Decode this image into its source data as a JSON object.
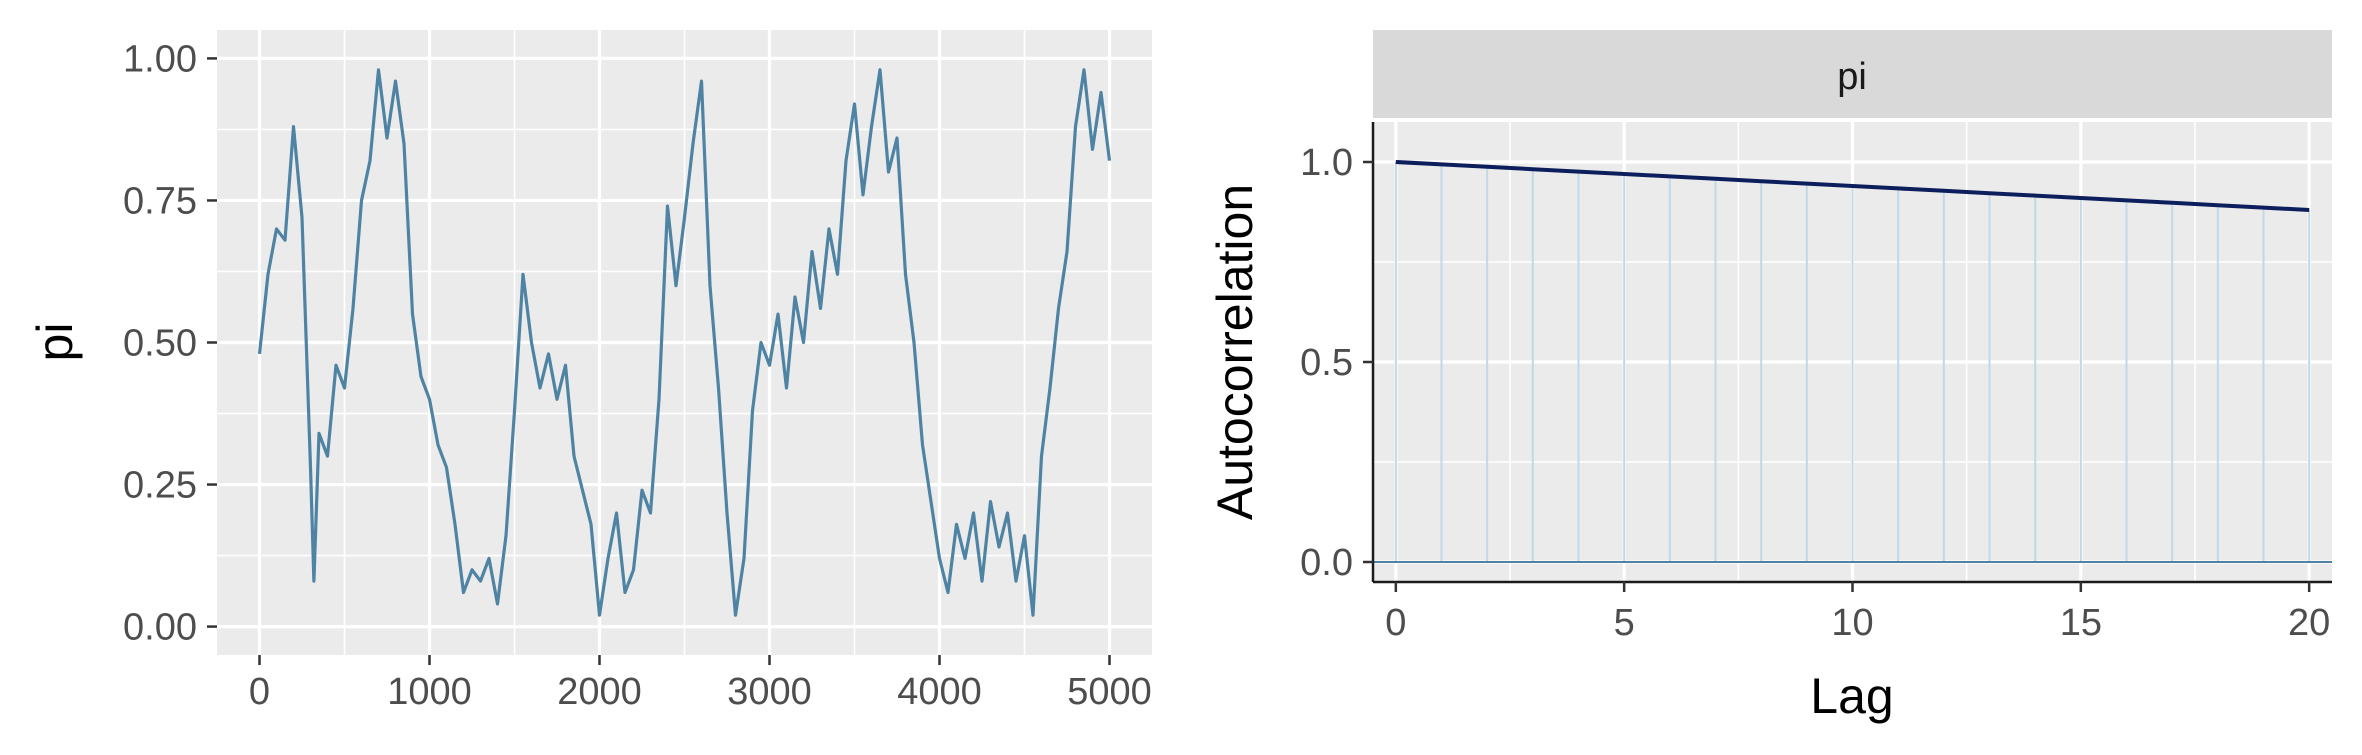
{
  "chart_data": [
    {
      "type": "line",
      "title": "",
      "xlabel": "",
      "ylabel": "pi",
      "xlim": [
        -250,
        5250
      ],
      "ylim": [
        -0.05,
        1.05
      ],
      "x_ticks": [
        0,
        1000,
        2000,
        3000,
        4000,
        5000
      ],
      "x_tick_labels": [
        "0",
        "1000",
        "2000",
        "3000",
        "4000",
        "5000"
      ],
      "y_ticks": [
        0,
        0.25,
        0.5,
        0.75,
        1.0
      ],
      "y_tick_labels": [
        "0.00",
        "0.25",
        "0.50",
        "0.75",
        "1.00"
      ],
      "grid": true,
      "color": "#4e83a4",
      "series": [
        {
          "x": [
            0,
            50,
            100,
            150,
            200,
            250,
            300,
            320,
            350,
            400,
            450,
            500,
            550,
            600,
            650,
            700,
            750,
            800,
            850,
            900,
            950,
            1000,
            1050,
            1100,
            1150,
            1200,
            1250,
            1300,
            1350,
            1400,
            1450,
            1500,
            1550,
            1600,
            1650,
            1700,
            1750,
            1800,
            1850,
            1900,
            1950,
            2000,
            2050,
            2100,
            2150,
            2200,
            2250,
            2300,
            2350,
            2400,
            2450,
            2500,
            2550,
            2600,
            2650,
            2700,
            2750,
            2800,
            2850,
            2900,
            2950,
            3000,
            3050,
            3100,
            3150,
            3200,
            3250,
            3300,
            3350,
            3400,
            3450,
            3500,
            3550,
            3600,
            3650,
            3700,
            3750,
            3800,
            3850,
            3900,
            3950,
            4000,
            4050,
            4100,
            4150,
            4200,
            4250,
            4300,
            4350,
            4400,
            4450,
            4500,
            4550,
            4600,
            4650,
            4700,
            4750,
            4800,
            4850,
            4900,
            4950,
            5000
          ],
          "y": [
            0.48,
            0.62,
            0.7,
            0.68,
            0.88,
            0.72,
            0.28,
            0.08,
            0.34,
            0.3,
            0.46,
            0.42,
            0.56,
            0.75,
            0.82,
            0.98,
            0.86,
            0.96,
            0.85,
            0.55,
            0.44,
            0.4,
            0.32,
            0.28,
            0.18,
            0.06,
            0.1,
            0.08,
            0.12,
            0.04,
            0.16,
            0.38,
            0.62,
            0.5,
            0.42,
            0.48,
            0.4,
            0.46,
            0.3,
            0.24,
            0.18,
            0.02,
            0.12,
            0.2,
            0.06,
            0.1,
            0.24,
            0.2,
            0.4,
            0.74,
            0.6,
            0.72,
            0.85,
            0.96,
            0.6,
            0.42,
            0.2,
            0.02,
            0.12,
            0.38,
            0.5,
            0.46,
            0.55,
            0.42,
            0.58,
            0.5,
            0.66,
            0.56,
            0.7,
            0.62,
            0.82,
            0.92,
            0.76,
            0.88,
            0.98,
            0.8,
            0.86,
            0.62,
            0.5,
            0.32,
            0.22,
            0.12,
            0.06,
            0.18,
            0.12,
            0.2,
            0.08,
            0.22,
            0.14,
            0.2,
            0.08,
            0.16,
            0.02,
            0.3,
            0.42,
            0.56,
            0.66,
            0.88,
            0.98,
            0.84,
            0.94,
            0.82
          ]
        }
      ]
    },
    {
      "type": "bar",
      "title": "",
      "facet_label": "pi",
      "xlabel": "Lag",
      "ylabel": "Autocorrelation",
      "xlim": [
        -0.5,
        20.5
      ],
      "ylim": [
        -0.05,
        1.1
      ],
      "x_ticks": [
        0,
        5,
        10,
        15,
        20
      ],
      "x_tick_labels": [
        "0",
        "5",
        "10",
        "15",
        "20"
      ],
      "y_ticks": [
        0,
        0.5,
        1.0
      ],
      "y_tick_labels": [
        "0.0",
        "0.5",
        "1.0"
      ],
      "grid": true,
      "bar_color": "#c2d8e6",
      "line_color": "#0c1f5c",
      "zero_line_color": "#4e83a4",
      "lags": [
        0,
        1,
        2,
        3,
        4,
        5,
        6,
        7,
        8,
        9,
        10,
        11,
        12,
        13,
        14,
        15,
        16,
        17,
        18,
        19,
        20
      ],
      "values": [
        1.0,
        0.994,
        0.988,
        0.982,
        0.976,
        0.97,
        0.964,
        0.958,
        0.952,
        0.946,
        0.94,
        0.934,
        0.928,
        0.922,
        0.916,
        0.91,
        0.904,
        0.898,
        0.892,
        0.886,
        0.88
      ]
    }
  ]
}
